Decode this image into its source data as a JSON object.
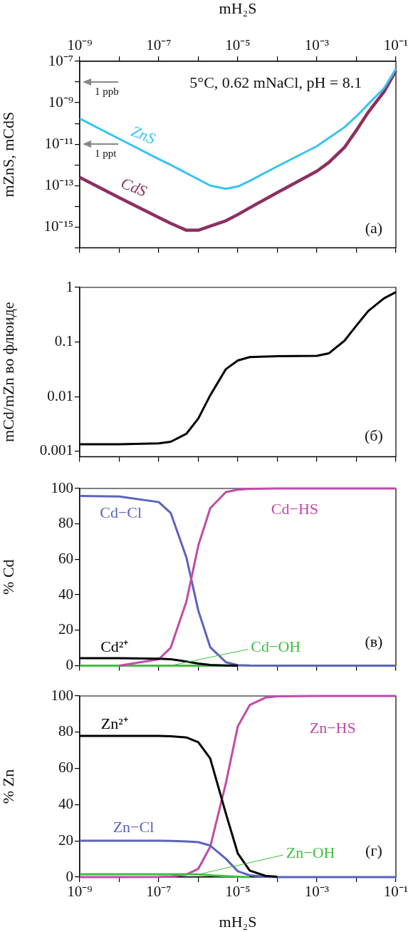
{
  "chart_data": [
    {
      "type": "line",
      "ylabel": "mZnS, mCdS",
      "xlabel": "mH₂S",
      "log": "xy",
      "xlim": [
        1e-09,
        0.1
      ],
      "xticks": [
        {
          "value": 1e-09,
          "label": "10⁻⁹"
        },
        {
          "value": 1e-08,
          "label": null
        },
        {
          "value": 1e-07,
          "label": "10⁻⁷"
        },
        {
          "value": 1e-06,
          "label": null
        },
        {
          "value": 1e-05,
          "label": "10⁻⁵"
        },
        {
          "value": 0.0001,
          "label": null
        },
        {
          "value": 0.001,
          "label": "10⁻³"
        },
        {
          "value": 0.01,
          "label": null
        },
        {
          "value": 0.1,
          "label": "10⁻¹"
        }
      ],
      "ylim": [
        1e-16,
        1e-07
      ],
      "yticks": [
        {
          "value": 1e-16,
          "label": null
        },
        {
          "value": 1e-15,
          "label": "10⁻¹⁵"
        },
        {
          "value": 1e-14,
          "label": null
        },
        {
          "value": 1e-13,
          "label": "10⁻¹³"
        },
        {
          "value": 1e-12,
          "label": null
        },
        {
          "value": 1e-11,
          "label": "10⁻¹¹"
        },
        {
          "value": 1e-10,
          "label": null
        },
        {
          "value": 1e-09,
          "label": "10⁻⁹"
        },
        {
          "value": 1e-08,
          "label": null
        },
        {
          "value": 1e-07,
          "label": "10⁻⁷"
        }
      ],
      "x": [
        1e-09,
        1e-08,
        1e-07,
        2e-07,
        5e-07,
        1e-06,
        2e-06,
        5e-06,
        1e-05,
        2e-05,
        0.0001,
        0.001,
        0.002,
        0.005,
        0.01,
        0.02,
        0.05,
        0.1
      ],
      "series": [
        {
          "name": "ZnS",
          "color": "#36c4f0",
          "values": [
            1.7e-10,
            1.8e-11,
            1.9e-12,
            1e-12,
            4e-13,
            2e-13,
            1e-13,
            7e-14,
            9e-14,
            1.7e-13,
            8.5e-13,
            8e-12,
            2e-11,
            6.6e-11,
            2.2e-10,
            8.7e-10,
            5e-09,
            4.3e-08
          ]
        },
        {
          "name": "CdS",
          "color": "#8e2f5f",
          "values": [
            2.5e-13,
            2.6e-14,
            2.9e-15,
            1.5e-15,
            7e-16,
            7e-16,
            1.1e-15,
            2e-15,
            4e-15,
            8.5e-15,
            4.6e-14,
            5e-13,
            1.3e-12,
            7e-12,
            4.7e-11,
            3.5e-10,
            3.4e-09,
            3.5e-08
          ]
        }
      ],
      "annotations": [
        "5°C, 0.62 mNaCl, pH = 8.1",
        "1 ppb",
        "1 ppt",
        "(a)"
      ]
    },
    {
      "type": "line",
      "ylabel": "mCd/mZn во флюиде",
      "log": "xy",
      "tick_labels": "y",
      "xlim": [
        1e-09,
        0.1
      ],
      "xticks": [
        {
          "value": 1e-09,
          "label": null
        },
        {
          "value": 1e-08,
          "label": null
        },
        {
          "value": 1e-07,
          "label": null
        },
        {
          "value": 1e-06,
          "label": null
        },
        {
          "value": 1e-05,
          "label": null
        },
        {
          "value": 0.0001,
          "label": null
        },
        {
          "value": 0.001,
          "label": null
        },
        {
          "value": 0.01,
          "label": null
        },
        {
          "value": 0.1,
          "label": null
        }
      ],
      "ylim": [
        0.0008,
        1
      ],
      "yticks": [
        0.001,
        0.01,
        0.1,
        1
      ],
      "x": [
        1e-09,
        1e-08,
        1e-07,
        2e-07,
        5e-07,
        1e-06,
        2e-06,
        5e-06,
        1e-05,
        2e-05,
        0.0001,
        0.001,
        0.002,
        0.005,
        0.01,
        0.02,
        0.05,
        0.1
      ],
      "series": [
        {
          "color": "#000000",
          "values": [
            0.00135,
            0.00135,
            0.0014,
            0.0015,
            0.0021,
            0.004,
            0.0106,
            0.032,
            0.046,
            0.053,
            0.055,
            0.056,
            0.062,
            0.106,
            0.2,
            0.37,
            0.63,
            0.82
          ]
        }
      ],
      "annotations": [
        "(б)"
      ]
    },
    {
      "type": "line",
      "ylabel": "% Cd",
      "log": "x",
      "tick_labels": "y",
      "xlim": [
        1e-09,
        0.1
      ],
      "xticks": [
        {
          "value": 1e-09,
          "label": null
        },
        {
          "value": 1e-08,
          "label": null
        },
        {
          "value": 1e-07,
          "label": null
        },
        {
          "value": 1e-06,
          "label": null
        },
        {
          "value": 1e-05,
          "label": null
        },
        {
          "value": 0.0001,
          "label": null
        },
        {
          "value": 0.001,
          "label": null
        },
        {
          "value": 0.01,
          "label": null
        },
        {
          "value": 0.1,
          "label": null
        }
      ],
      "ylim": [
        0,
        100
      ],
      "yticks": [
        0,
        20,
        40,
        60,
        80,
        100
      ],
      "x": [
        1e-09,
        1e-08,
        1e-07,
        2e-07,
        5e-07,
        1e-06,
        2e-06,
        5e-06,
        1e-05,
        2e-05,
        0.0001,
        0.001,
        0.1
      ],
      "series": [
        {
          "name": "Cd²⁺",
          "color": "#000000",
          "values": [
            4.2,
            4.2,
            3.9,
            3.6,
            2.3,
            1.2,
            0.4,
            0.1,
            0,
            null,
            null,
            null,
            null
          ]
        },
        {
          "name": "Cd−HS",
          "color": "#c24aa8",
          "values": [
            null,
            0,
            3.6,
            10.1,
            36.2,
            67.8,
            88.8,
            98,
            99.3,
            99.8,
            100,
            100,
            100
          ]
        },
        {
          "name": "Cd−OH",
          "color": "#3fbf3f",
          "values": [
            0,
            0,
            0,
            0,
            0,
            0,
            0,
            0,
            0,
            null,
            null,
            null,
            null
          ]
        },
        {
          "name": "Cd−Cl",
          "color": "#5b64bd",
          "values": [
            95.8,
            95.5,
            92.3,
            86.2,
            61,
            31,
            10.4,
            1.9,
            0.3,
            0.1,
            0,
            0,
            0
          ]
        }
      ],
      "annotations": [
        "(в)"
      ]
    },
    {
      "type": "line",
      "ylabel": "% Zn",
      "xlabel": "mH₂S",
      "log": "x",
      "xlim": [
        1e-09,
        0.1
      ],
      "xticks": [
        {
          "value": 1e-09,
          "label": "10⁻⁹"
        },
        {
          "value": 1e-08,
          "label": null
        },
        {
          "value": 1e-07,
          "label": "10⁻⁷"
        },
        {
          "value": 1e-06,
          "label": null
        },
        {
          "value": 1e-05,
          "label": "10⁻⁵"
        },
        {
          "value": 0.0001,
          "label": null
        },
        {
          "value": 0.001,
          "label": "10⁻³"
        },
        {
          "value": 0.01,
          "label": null
        },
        {
          "value": 0.1,
          "label": "10⁻¹"
        }
      ],
      "ylim": [
        0,
        100
      ],
      "yticks": [
        0,
        20,
        40,
        60,
        80,
        100
      ],
      "x": [
        1e-09,
        1e-08,
        1e-07,
        2e-07,
        5e-07,
        1e-06,
        2e-06,
        5e-06,
        1e-05,
        2e-05,
        5e-05,
        0.0001,
        0.001,
        0.1
      ],
      "series": [
        {
          "name": "Zn−OH",
          "color": "#3fbf3f",
          "values": [
            1.6,
            1.6,
            1.6,
            1.6,
            1.6,
            1.5,
            1.0,
            0.5,
            0.2,
            0,
            null,
            null,
            null,
            null
          ]
        },
        {
          "name": "Zn²⁺",
          "color": "#000000",
          "values": [
            78,
            78,
            78,
            77.8,
            77.1,
            74.5,
            65.5,
            35,
            13,
            3.6,
            0.7,
            0.2,
            null,
            null
          ]
        },
        {
          "name": "Zn−Cl",
          "color": "#5b64bd",
          "values": [
            20.1,
            20.1,
            20.1,
            20,
            19.7,
            19.3,
            17.4,
            10.1,
            3.2,
            1,
            0.2,
            0,
            0,
            0
          ]
        },
        {
          "name": "Zn−HS",
          "color": "#c24aa8",
          "values": [
            0,
            0,
            0.1,
            0.3,
            1.4,
            4.6,
            16.7,
            52,
            83.3,
            95,
            99.1,
            99.8,
            100,
            100
          ]
        }
      ],
      "annotations": [
        "(г)"
      ]
    }
  ]
}
